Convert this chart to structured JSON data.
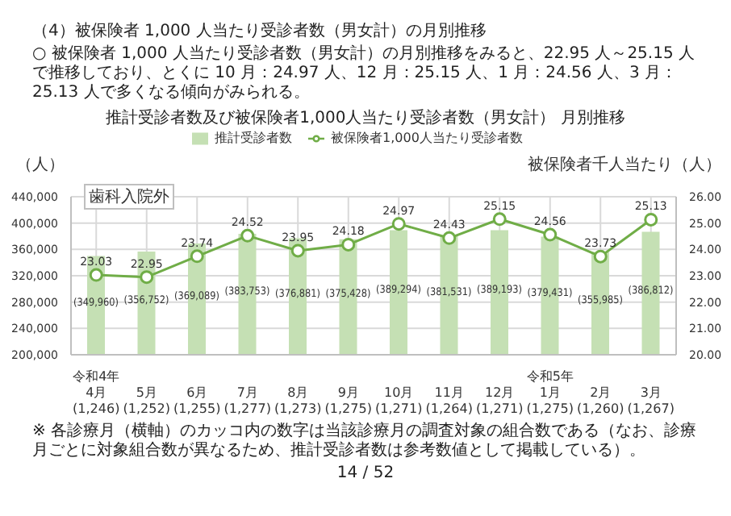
{
  "chart_data": {
    "type": "bar",
    "title": "推計受診者数及び被保険者1,000人当たり受診者数（男女計） 月別推移",
    "annotations": [
      "（4）被保険者 1,000 人当たり受診者数（男女計）の月別推移",
      "○ 被保険者 1,000 人当たり受診者数（男女計）の月別推移をみると、22.95 人～25.15 人で推移しており、とくに 10 月：24.97 人、12 月：25.15 人、1 月：24.56 人、3 月：25.13 人で多くなる傾向がみられる。",
      "歯科入院外",
      "※ 各診療月（横軸）のカッコ内の数字は当該診療月の調査対象の組合数である（なお、診療月ごとに対象組合数が異なるため、推計受診者数は参考数値として掲載している）。",
      "14 / 52"
    ],
    "ylabel": "（人）",
    "y2label": "被保険者千人当たり（人）",
    "categories": [
      "令和4年\n4月\n(1,246)",
      "5月\n(1,252)",
      "6月\n(1,255)",
      "7月\n(1,277)",
      "8月\n(1,273)",
      "9月\n(1,275)",
      "10月\n(1,271)",
      "11月\n(1,264)",
      "12月\n(1,271)",
      "令和5年\n1月\n(1,275)",
      "2月\n(1,260)",
      "3月\n(1,267)"
    ],
    "series": [
      {
        "name": "推計受診者数",
        "color": "#c5e0b4",
        "values": [
          349960,
          356752,
          369089,
          383753,
          376881,
          375428,
          389294,
          381531,
          389193,
          379431,
          355985,
          386812
        ],
        "value_labels": [
          "(349,960)",
          "(356,752)",
          "(369,089)",
          "(383,753)",
          "(376,881)",
          "(375,428)",
          "(389,294)",
          "(381,531)",
          "(389,193)",
          "(379,431)",
          "(355,985)",
          "(386,812)"
        ]
      },
      {
        "name": "被保険者1,000人当たり受診者数",
        "type": "line",
        "axis": "y2",
        "color": "#70ad47",
        "data_labels": true,
        "values": [
          23.03,
          22.95,
          23.74,
          24.52,
          23.95,
          24.18,
          24.97,
          24.43,
          25.15,
          24.56,
          23.73,
          25.13
        ]
      }
    ],
    "ylim": [
      200000,
      440000
    ],
    "yticks": [
      {
        "value": 200000,
        "label": "200,000"
      },
      {
        "value": 240000,
        "label": "240,000"
      },
      {
        "value": 280000,
        "label": "280,000"
      },
      {
        "value": 320000,
        "label": "320,000"
      },
      {
        "value": 360000,
        "label": "360,000"
      },
      {
        "value": 400000,
        "label": "400,000"
      },
      {
        "value": 440000,
        "label": "440,000"
      }
    ],
    "y2lim": [
      20,
      26
    ],
    "y2ticks": [
      {
        "value": 20,
        "label": "20.00"
      },
      {
        "value": 21,
        "label": "21.00"
      },
      {
        "value": 22,
        "label": "22.00"
      },
      {
        "value": 23,
        "label": "23.00"
      },
      {
        "value": 24,
        "label": "24.00"
      },
      {
        "value": 25,
        "label": "25.00"
      },
      {
        "value": 26,
        "label": "26.00"
      }
    ],
    "grid": true,
    "legend": "top",
    "marker": "circle"
  }
}
